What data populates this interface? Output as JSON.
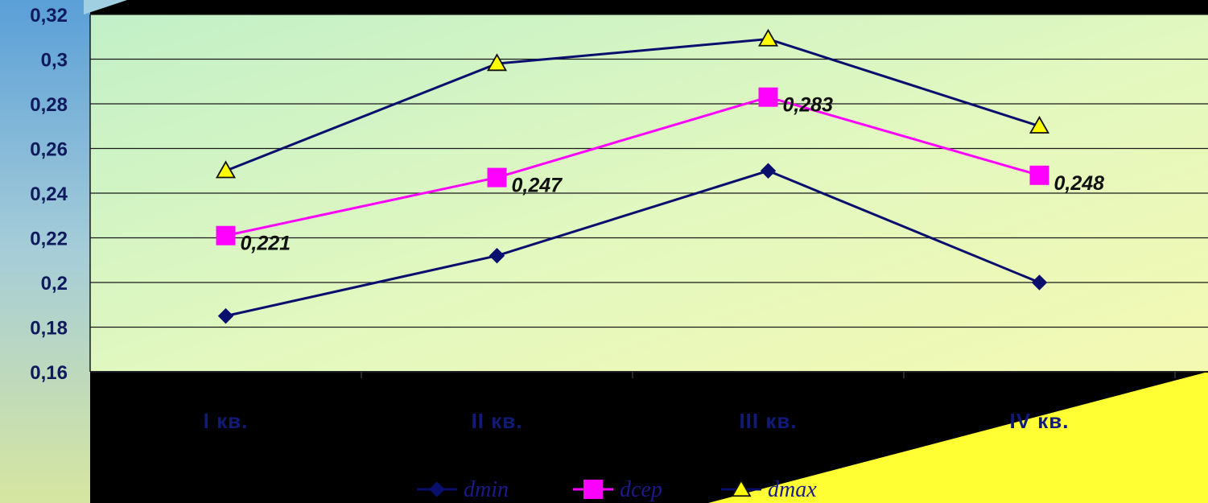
{
  "chart_data": {
    "type": "line",
    "categories": [
      "I кв.",
      "II кв.",
      "III кв.",
      "IV кв."
    ],
    "ylim": [
      0.16,
      0.32
    ],
    "ytick_step": 0.02,
    "ytick_labels": [
      "0,16",
      "0,18",
      "0,2",
      "0,22",
      "0,24",
      "0,26",
      "0,28",
      "0,3",
      "0,32"
    ],
    "grid": true,
    "legend_position": "bottom",
    "series": [
      {
        "name": "dmin",
        "values": [
          0.185,
          0.212,
          0.25,
          0.2
        ],
        "color": "#0a0f6e",
        "marker": "diamond",
        "data_labels": []
      },
      {
        "name": "dcep",
        "values": [
          0.221,
          0.247,
          0.283,
          0.248
        ],
        "color": "#ff00ff",
        "marker": "square",
        "data_labels": [
          "0,221",
          "0,247",
          "0,283",
          "0,248"
        ]
      },
      {
        "name": "dmax",
        "values": [
          0.25,
          0.298,
          0.309,
          0.27
        ],
        "color": "#0a0f6e",
        "marker": "triangle",
        "marker_fill": "#ffff00",
        "data_labels": []
      }
    ]
  }
}
